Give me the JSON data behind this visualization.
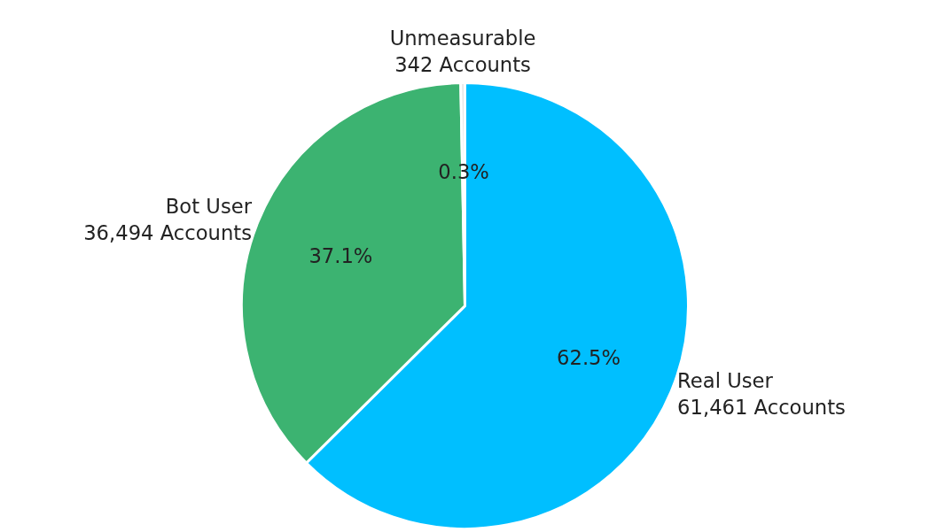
{
  "chart_data": {
    "type": "pie",
    "categories": [
      "Real User\n61,461 Accounts",
      "Bot User\n36,494 Accounts",
      "Unmeasurable\n342 Accounts"
    ],
    "values": [
      62.5,
      37.1,
      0.3
    ],
    "colors": [
      "#00bfff",
      "#3cb371",
      "#e6e6e6"
    ],
    "value_labels": [
      "62.5%",
      "37.1%",
      "0.3%"
    ]
  }
}
